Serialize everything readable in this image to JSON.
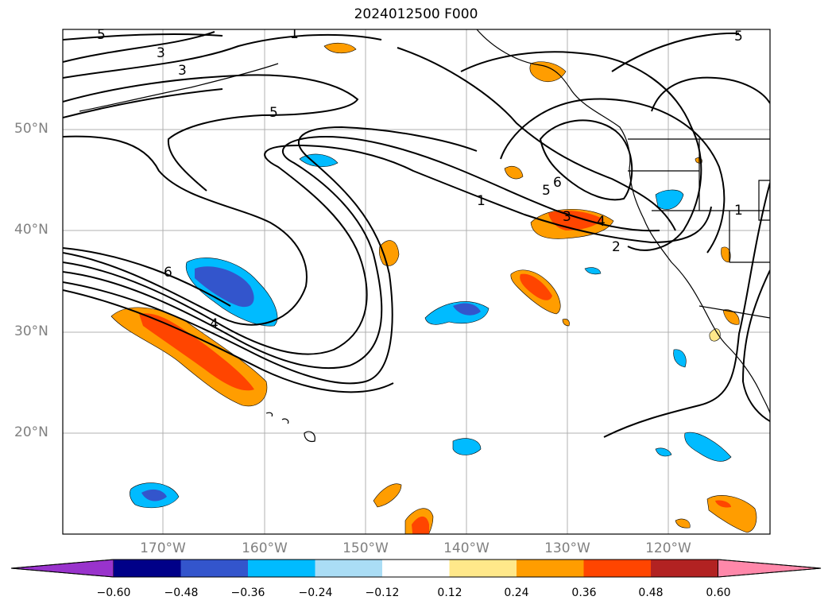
{
  "title": "2024012500 F000",
  "latitude_labels": [
    "50°N",
    "40°N",
    "30°N",
    "20°N"
  ],
  "longitude_labels": [
    "170°W",
    "160°W",
    "150°W",
    "140°W",
    "130°W",
    "120°W"
  ],
  "colorbar": {
    "ticks": [
      "−0.60",
      "−0.48",
      "−0.36",
      "−0.24",
      "−0.12",
      "0.12",
      "0.24",
      "0.36",
      "0.48",
      "0.60"
    ],
    "colors": [
      "#9933cc",
      "#000088",
      "#3355cc",
      "#00bbff",
      "#aaddf5",
      "#ffffff",
      "#ffe88a",
      "#ff9d00",
      "#ff4500",
      "#b22222",
      "#ff88aa"
    ]
  },
  "contour_labels": [
    "5",
    "3",
    "3",
    "5",
    "1",
    "6",
    "4",
    "1",
    "6",
    "5",
    "3",
    "4",
    "2",
    "5",
    "1"
  ]
}
